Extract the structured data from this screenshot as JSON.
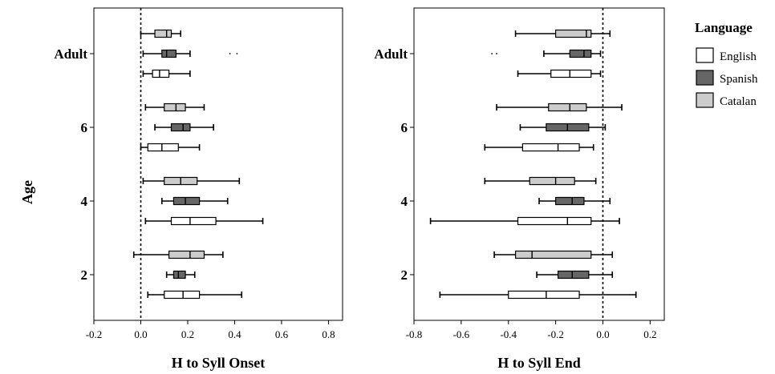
{
  "chart_data": [
    {
      "type": "boxplot",
      "orientation": "horizontal",
      "xlabel": "H to Syll Onset",
      "ylabel": "Age",
      "xlim": [
        -0.2,
        0.86
      ],
      "xticks": [
        -0.2,
        0.0,
        0.2,
        0.4,
        0.6,
        0.8
      ],
      "xtick_labels": [
        "-0.2",
        "0.0",
        "0.2",
        "0.4",
        "0.6",
        "0.8"
      ],
      "reference_line": {
        "x": 0.0,
        "style": "dotted"
      },
      "categories": [
        "2",
        "4",
        "6",
        "Adult"
      ],
      "series": [
        {
          "name": "English",
          "boxes": [
            {
              "category": "2",
              "whisker_low": 0.03,
              "q1": 0.1,
              "median": 0.18,
              "q3": 0.25,
              "whisker_high": 0.43,
              "outliers": []
            },
            {
              "category": "4",
              "whisker_low": 0.02,
              "q1": 0.13,
              "median": 0.21,
              "q3": 0.32,
              "whisker_high": 0.52,
              "outliers": []
            },
            {
              "category": "6",
              "whisker_low": 0.0,
              "q1": 0.03,
              "median": 0.09,
              "q3": 0.16,
              "whisker_high": 0.25,
              "outliers": []
            },
            {
              "category": "Adult",
              "whisker_low": 0.01,
              "q1": 0.05,
              "median": 0.08,
              "q3": 0.12,
              "whisker_high": 0.21,
              "outliers": []
            }
          ]
        },
        {
          "name": "Spanish",
          "boxes": [
            {
              "category": "2",
              "whisker_low": 0.11,
              "q1": 0.14,
              "median": 0.16,
              "q3": 0.19,
              "whisker_high": 0.23,
              "outliers": []
            },
            {
              "category": "4",
              "whisker_low": 0.09,
              "q1": 0.14,
              "median": 0.19,
              "q3": 0.25,
              "whisker_high": 0.37,
              "outliers": []
            },
            {
              "category": "6",
              "whisker_low": 0.06,
              "q1": 0.13,
              "median": 0.18,
              "q3": 0.21,
              "whisker_high": 0.31,
              "outliers": []
            },
            {
              "category": "Adult",
              "whisker_low": 0.01,
              "q1": 0.09,
              "median": 0.11,
              "q3": 0.15,
              "whisker_high": 0.21,
              "outliers": [
                0.38,
                0.41
              ]
            }
          ]
        },
        {
          "name": "Catalan",
          "boxes": [
            {
              "category": "2",
              "whisker_low": -0.03,
              "q1": 0.12,
              "median": 0.21,
              "q3": 0.27,
              "whisker_high": 0.35,
              "outliers": []
            },
            {
              "category": "4",
              "whisker_low": 0.01,
              "q1": 0.1,
              "median": 0.17,
              "q3": 0.24,
              "whisker_high": 0.42,
              "outliers": []
            },
            {
              "category": "6",
              "whisker_low": 0.02,
              "q1": 0.1,
              "median": 0.15,
              "q3": 0.19,
              "whisker_high": 0.27,
              "outliers": []
            },
            {
              "category": "Adult",
              "whisker_low": 0.0,
              "q1": 0.06,
              "median": 0.11,
              "q3": 0.13,
              "whisker_high": 0.17,
              "outliers": []
            }
          ]
        }
      ]
    },
    {
      "type": "boxplot",
      "orientation": "horizontal",
      "xlabel": "H to Syll End",
      "ylabel": "",
      "xlim": [
        -0.8,
        0.26
      ],
      "xticks": [
        -0.8,
        -0.6,
        -0.4,
        -0.2,
        0.0,
        0.2
      ],
      "xtick_labels": [
        "-0.8",
        "-0.6",
        "-0.4",
        "-0.2",
        "0.0",
        "0.2"
      ],
      "reference_line": {
        "x": 0.0,
        "style": "dotted"
      },
      "categories": [
        "2",
        "4",
        "6",
        "Adult"
      ],
      "series": [
        {
          "name": "English",
          "boxes": [
            {
              "category": "2",
              "whisker_low": -0.69,
              "q1": -0.4,
              "median": -0.24,
              "q3": -0.1,
              "whisker_high": 0.14,
              "outliers": []
            },
            {
              "category": "4",
              "whisker_low": -0.73,
              "q1": -0.36,
              "median": -0.15,
              "q3": -0.05,
              "whisker_high": 0.07,
              "outliers": []
            },
            {
              "category": "6",
              "whisker_low": -0.5,
              "q1": -0.34,
              "median": -0.19,
              "q3": -0.1,
              "whisker_high": -0.04,
              "outliers": []
            },
            {
              "category": "Adult",
              "whisker_low": -0.36,
              "q1": -0.22,
              "median": -0.14,
              "q3": -0.05,
              "whisker_high": -0.01,
              "outliers": []
            }
          ]
        },
        {
          "name": "Spanish",
          "boxes": [
            {
              "category": "2",
              "whisker_low": -0.28,
              "q1": -0.19,
              "median": -0.13,
              "q3": -0.06,
              "whisker_high": 0.04,
              "outliers": []
            },
            {
              "category": "4",
              "whisker_low": -0.27,
              "q1": -0.2,
              "median": -0.13,
              "q3": -0.08,
              "whisker_high": 0.03,
              "outliers": []
            },
            {
              "category": "6",
              "whisker_low": -0.35,
              "q1": -0.24,
              "median": -0.15,
              "q3": -0.06,
              "whisker_high": 0.01,
              "outliers": []
            },
            {
              "category": "Adult",
              "whisker_low": -0.25,
              "q1": -0.14,
              "median": -0.08,
              "q3": -0.05,
              "whisker_high": -0.01,
              "outliers": [
                -0.47,
                -0.45
              ]
            }
          ]
        },
        {
          "name": "Catalan",
          "boxes": [
            {
              "category": "2",
              "whisker_low": -0.46,
              "q1": -0.37,
              "median": -0.3,
              "q3": -0.05,
              "whisker_high": 0.04,
              "outliers": []
            },
            {
              "category": "4",
              "whisker_low": -0.5,
              "q1": -0.31,
              "median": -0.2,
              "q3": -0.12,
              "whisker_high": -0.03,
              "outliers": []
            },
            {
              "category": "6",
              "whisker_low": -0.45,
              "q1": -0.23,
              "median": -0.14,
              "q3": -0.07,
              "whisker_high": 0.08,
              "outliers": []
            },
            {
              "category": "Adult",
              "whisker_low": -0.37,
              "q1": -0.2,
              "median": -0.07,
              "q3": -0.05,
              "whisker_high": 0.03,
              "outliers": []
            }
          ]
        }
      ]
    }
  ],
  "legend": {
    "title": "Language",
    "placement": "right",
    "items": [
      {
        "label": "English",
        "color": "#ffffff"
      },
      {
        "label": "Spanish",
        "color": "#666666"
      },
      {
        "label": "Catalan",
        "color": "#cccccc"
      }
    ]
  }
}
